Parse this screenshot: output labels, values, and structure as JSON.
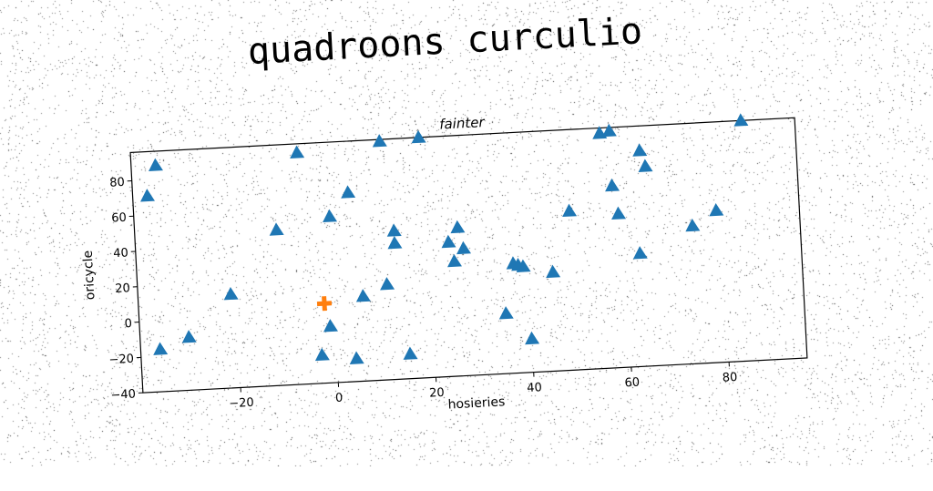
{
  "figure_title": "quadroons curculio",
  "chart_data": {
    "type": "scatter",
    "title": "fainter",
    "xlabel": "hosieries",
    "ylabel": "oricycle",
    "xlim": [
      -40,
      96
    ],
    "ylim": [
      -40,
      96
    ],
    "xticks": [
      -20,
      0,
      20,
      40,
      60,
      80
    ],
    "yticks": [
      -40,
      -20,
      0,
      20,
      40,
      60,
      80
    ],
    "grid": false,
    "legend": "none",
    "series": [
      {
        "marker": "triangle",
        "color": "#1f77b4",
        "points": [
          [
            -37,
            71
          ],
          [
            -35,
            88
          ],
          [
            -36,
            -16
          ],
          [
            -30,
            -10
          ],
          [
            -21,
            13
          ],
          [
            -11,
            48
          ],
          [
            -6,
            91
          ],
          [
            -3,
            -24
          ],
          [
            -1,
            -8
          ],
          [
            0,
            54
          ],
          [
            4,
            67
          ],
          [
            4,
            -27
          ],
          [
            6,
            8
          ],
          [
            11,
            95
          ],
          [
            11,
            14
          ],
          [
            13,
            37
          ],
          [
            13,
            44
          ],
          [
            15,
            -26
          ],
          [
            19,
            96
          ],
          [
            24,
            36
          ],
          [
            25,
            25
          ],
          [
            26,
            44
          ],
          [
            27,
            32
          ],
          [
            35,
            -6
          ],
          [
            37,
            22
          ],
          [
            38,
            21
          ],
          [
            39,
            20
          ],
          [
            40,
            -21
          ],
          [
            45,
            16
          ],
          [
            49,
            50
          ],
          [
            56,
            93
          ],
          [
            58,
            94
          ],
          [
            58,
            63
          ],
          [
            59,
            47
          ],
          [
            63,
            24
          ],
          [
            64,
            82
          ],
          [
            65,
            73
          ],
          [
            74,
            38
          ],
          [
            79,
            46
          ],
          [
            85,
            96
          ]
        ]
      },
      {
        "marker": "plus",
        "color": "#ff7f0e",
        "points": [
          [
            -2,
            5
          ]
        ]
      }
    ]
  }
}
